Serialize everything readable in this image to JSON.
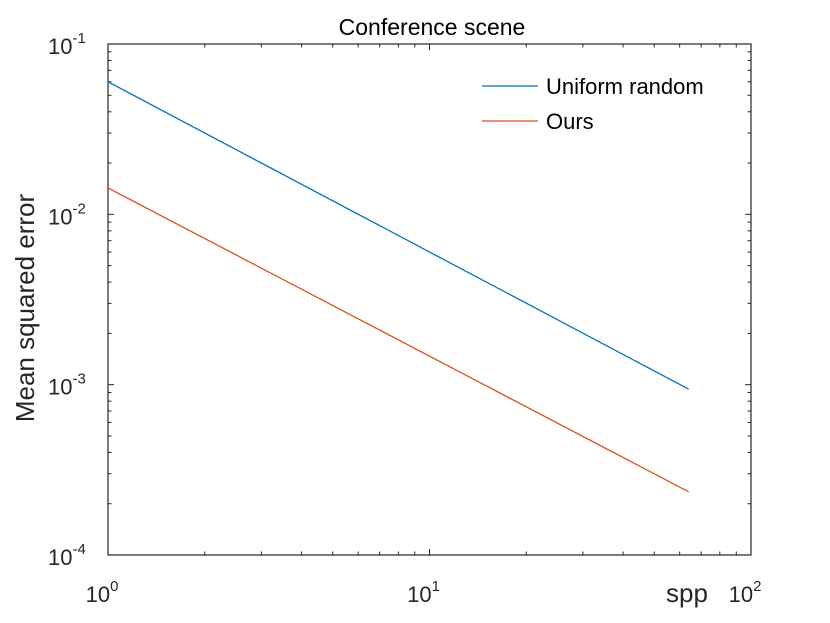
{
  "chart_data": {
    "type": "line",
    "title": "Conference scene",
    "xlabel": "spp",
    "ylabel": "Mean squared error",
    "xscale": "log",
    "yscale": "log",
    "xlim": [
      1,
      100
    ],
    "ylim": [
      0.0001,
      0.1
    ],
    "x_ticks": [
      {
        "base": "10",
        "exp": "0",
        "value": 1
      },
      {
        "base": "10",
        "exp": "1",
        "value": 10
      },
      {
        "base": "10",
        "exp": "2",
        "value": 100
      }
    ],
    "y_ticks": [
      {
        "base": "10",
        "exp": "-4",
        "value": 0.0001
      },
      {
        "base": "10",
        "exp": "-3",
        "value": 0.001
      },
      {
        "base": "10",
        "exp": "-2",
        "value": 0.01
      },
      {
        "base": "10",
        "exp": "-1",
        "value": 0.1
      }
    ],
    "grid": false,
    "legend_position": "top-right",
    "series": [
      {
        "name": "Uniform random",
        "color": "#0072BD",
        "x": [
          1,
          64
        ],
        "y": [
          0.06,
          0.00094
        ]
      },
      {
        "name": "Ours",
        "color": "#D95319",
        "x": [
          1,
          64
        ],
        "y": [
          0.0143,
          0.000235
        ]
      }
    ]
  }
}
